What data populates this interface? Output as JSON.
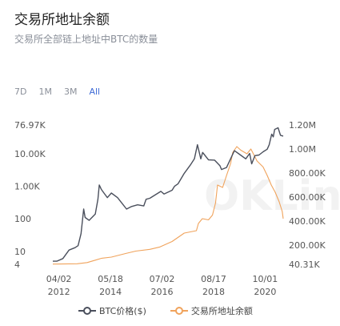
{
  "header": {
    "title": "交易所地址余额",
    "subtitle": "交易所全部链上地址中BTC的数量"
  },
  "range_selector": {
    "options": [
      "7D",
      "1M",
      "3M",
      "All"
    ],
    "active": "All"
  },
  "watermark": "OKLin",
  "colors": {
    "btc_price": "#4a4f5c",
    "exchange_balance": "#f0a35c",
    "active_range": "#3e6ad6"
  },
  "chart_data": {
    "type": "line",
    "x_ticks": [
      {
        "date": "2012-04-02",
        "line1": "04/02",
        "line2": "2012"
      },
      {
        "date": "2014-05-18",
        "line1": "05/18",
        "line2": "2014"
      },
      {
        "date": "2016-07-02",
        "line1": "07/02",
        "line2": "2016"
      },
      {
        "date": "2018-08-17",
        "line1": "08/17",
        "line2": "2018"
      },
      {
        "date": "2020-10-01",
        "line1": "10/01",
        "line2": "2020"
      }
    ],
    "xlim": [
      "2012-01-01",
      "2021-06-30"
    ],
    "left_axis": {
      "scale": "log",
      "ylim": [
        4,
        76970
      ],
      "ticks": [
        {
          "value": 76970,
          "label": "76.97K"
        },
        {
          "value": 10000,
          "label": "10.00K"
        },
        {
          "value": 1000,
          "label": "1.00K"
        },
        {
          "value": 100,
          "label": "100"
        },
        {
          "value": 10,
          "label": "10"
        },
        {
          "value": 4,
          "label": "4"
        }
      ]
    },
    "right_axis": {
      "scale": "linear",
      "ylim": [
        40310,
        1200000
      ],
      "ticks": [
        {
          "value": 1200000,
          "label": "1.20M"
        },
        {
          "value": 1000000,
          "label": "1.00M"
        },
        {
          "value": 800000,
          "label": "800.00K"
        },
        {
          "value": 600000,
          "label": "600.00K"
        },
        {
          "value": 400000,
          "label": "400.00K"
        },
        {
          "value": 200000,
          "label": "200.00K"
        },
        {
          "value": 40310,
          "label": "40.31K"
        }
      ]
    },
    "series": [
      {
        "name": "BTC价格($)",
        "axis": "left",
        "points": [
          [
            "2012-01-01",
            5
          ],
          [
            "2012-03-01",
            5
          ],
          [
            "2012-06-01",
            6
          ],
          [
            "2012-09-01",
            11
          ],
          [
            "2012-12-01",
            13
          ],
          [
            "2013-01-15",
            15
          ],
          [
            "2013-03-01",
            35
          ],
          [
            "2013-04-10",
            200
          ],
          [
            "2013-05-01",
            110
          ],
          [
            "2013-07-01",
            90
          ],
          [
            "2013-10-01",
            140
          ],
          [
            "2013-11-10",
            400
          ],
          [
            "2013-12-01",
            1100
          ],
          [
            "2014-01-01",
            800
          ],
          [
            "2014-02-15",
            600
          ],
          [
            "2014-04-01",
            450
          ],
          [
            "2014-06-01",
            620
          ],
          [
            "2014-09-01",
            450
          ],
          [
            "2015-01-15",
            200
          ],
          [
            "2015-04-01",
            240
          ],
          [
            "2015-07-01",
            270
          ],
          [
            "2015-10-01",
            250
          ],
          [
            "2015-11-05",
            400
          ],
          [
            "2016-01-01",
            430
          ],
          [
            "2016-06-15",
            700
          ],
          [
            "2016-08-01",
            580
          ],
          [
            "2016-12-01",
            760
          ],
          [
            "2017-01-05",
            1000
          ],
          [
            "2017-03-01",
            1200
          ],
          [
            "2017-06-01",
            2500
          ],
          [
            "2017-09-01",
            4500
          ],
          [
            "2017-11-01",
            7000
          ],
          [
            "2017-12-17",
            19000
          ],
          [
            "2018-02-06",
            7000
          ],
          [
            "2018-03-05",
            11000
          ],
          [
            "2018-06-01",
            6500
          ],
          [
            "2018-09-01",
            6400
          ],
          [
            "2018-11-20",
            4300
          ],
          [
            "2018-12-15",
            3300
          ],
          [
            "2019-03-01",
            3800
          ],
          [
            "2019-06-26",
            12500
          ],
          [
            "2019-09-01",
            10000
          ],
          [
            "2019-12-15",
            7000
          ],
          [
            "2020-02-12",
            10200
          ],
          [
            "2020-03-13",
            4900
          ],
          [
            "2020-05-01",
            8800
          ],
          [
            "2020-07-01",
            9200
          ],
          [
            "2020-09-01",
            11500
          ],
          [
            "2020-11-01",
            13800
          ],
          [
            "2020-12-01",
            19000
          ],
          [
            "2021-01-08",
            40000
          ],
          [
            "2021-02-01",
            33000
          ],
          [
            "2021-02-21",
            56000
          ],
          [
            "2021-04-14",
            63000
          ],
          [
            "2021-05-20",
            37000
          ],
          [
            "2021-06-30",
            35000
          ]
        ]
      },
      {
        "name": "交易所地址余额",
        "axis": "right",
        "points": [
          [
            "2012-01-01",
            42000
          ],
          [
            "2013-01-01",
            45000
          ],
          [
            "2013-06-01",
            55000
          ],
          [
            "2013-10-01",
            75000
          ],
          [
            "2014-01-01",
            90000
          ],
          [
            "2014-06-01",
            100000
          ],
          [
            "2015-01-01",
            130000
          ],
          [
            "2015-06-01",
            150000
          ],
          [
            "2016-01-01",
            165000
          ],
          [
            "2016-06-01",
            185000
          ],
          [
            "2016-12-01",
            230000
          ],
          [
            "2017-06-01",
            300000
          ],
          [
            "2017-12-01",
            320000
          ],
          [
            "2018-01-01",
            380000
          ],
          [
            "2018-03-01",
            420000
          ],
          [
            "2018-06-01",
            410000
          ],
          [
            "2018-08-01",
            450000
          ],
          [
            "2018-09-15",
            550000
          ],
          [
            "2018-10-15",
            700000
          ],
          [
            "2019-01-01",
            680000
          ],
          [
            "2019-03-01",
            780000
          ],
          [
            "2019-05-01",
            880000
          ],
          [
            "2019-06-01",
            970000
          ],
          [
            "2019-08-01",
            1020000
          ],
          [
            "2019-10-01",
            990000
          ],
          [
            "2020-01-01",
            960000
          ],
          [
            "2020-03-01",
            1000000
          ],
          [
            "2020-06-01",
            900000
          ],
          [
            "2020-09-01",
            850000
          ],
          [
            "2020-11-01",
            780000
          ],
          [
            "2021-01-01",
            700000
          ],
          [
            "2021-03-01",
            640000
          ],
          [
            "2021-05-01",
            560000
          ],
          [
            "2021-06-15",
            480000
          ],
          [
            "2021-06-30",
            420000
          ]
        ]
      }
    ],
    "grid": false,
    "legend": "bottom-center"
  }
}
